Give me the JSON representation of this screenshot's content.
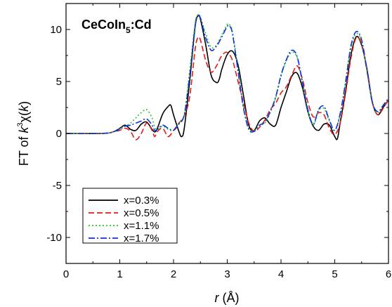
{
  "chart_data": {
    "type": "line",
    "annotation": {
      "main": "CeCoIn",
      "sub": "5",
      "suffix": ":Cd"
    },
    "xlabel": {
      "italic": "r",
      "rest": " (Å)"
    },
    "ylabel": {
      "prefix": "FT of ",
      "k": "k",
      "exp": "3",
      "chi": "χ(",
      "k2": "k",
      "close": ")"
    },
    "xlim": [
      0,
      6
    ],
    "ylim": [
      -12.5,
      12.5
    ],
    "x_ticks": [
      "0",
      "1",
      "2",
      "3",
      "4",
      "5",
      "6"
    ],
    "y_ticks": [
      "-10",
      "-5",
      "0",
      "5",
      "10"
    ],
    "grid": false,
    "legend_position": "lower-left",
    "series": [
      {
        "name": "x=0.3%",
        "color": "#000000",
        "dash": "solid",
        "points": [
          [
            0,
            0
          ],
          [
            0.3,
            0
          ],
          [
            0.6,
            0
          ],
          [
            0.8,
            0.05
          ],
          [
            0.9,
            0.2
          ],
          [
            1.0,
            0.5
          ],
          [
            1.1,
            0.8
          ],
          [
            1.2,
            0.4
          ],
          [
            1.3,
            0.3
          ],
          [
            1.4,
            0.9
          ],
          [
            1.5,
            1.1
          ],
          [
            1.6,
            0.4
          ],
          [
            1.65,
            0.15
          ],
          [
            1.7,
            0.5
          ],
          [
            1.8,
            1.9
          ],
          [
            1.9,
            2.6
          ],
          [
            1.95,
            2.7
          ],
          [
            2.0,
            1.8
          ],
          [
            2.1,
            0.2
          ],
          [
            2.15,
            -0.3
          ],
          [
            2.2,
            0.5
          ],
          [
            2.3,
            5.0
          ],
          [
            2.4,
            10.2
          ],
          [
            2.45,
            11.3
          ],
          [
            2.5,
            11.0
          ],
          [
            2.6,
            8.5
          ],
          [
            2.7,
            5.6
          ],
          [
            2.8,
            4.9
          ],
          [
            2.85,
            5.2
          ],
          [
            2.9,
            6.2
          ],
          [
            3.0,
            7.6
          ],
          [
            3.1,
            7.9
          ],
          [
            3.2,
            6.6
          ],
          [
            3.3,
            3.7
          ],
          [
            3.4,
            0.8
          ],
          [
            3.5,
            0.3
          ],
          [
            3.6,
            1.2
          ],
          [
            3.7,
            1.5
          ],
          [
            3.8,
            0.9
          ],
          [
            3.9,
            0.8
          ],
          [
            4.0,
            2.5
          ],
          [
            4.1,
            4.0
          ],
          [
            4.2,
            5.5
          ],
          [
            4.3,
            5.8
          ],
          [
            4.4,
            4.4
          ],
          [
            4.5,
            2.1
          ],
          [
            4.6,
            0.7
          ],
          [
            4.7,
            0.3
          ],
          [
            4.8,
            0.9
          ],
          [
            4.9,
            0.8
          ],
          [
            5.0,
            -0.3
          ],
          [
            5.05,
            -0.5
          ],
          [
            5.1,
            1.0
          ],
          [
            5.2,
            4.0
          ],
          [
            5.3,
            7.5
          ],
          [
            5.4,
            9.3
          ],
          [
            5.5,
            8.5
          ],
          [
            5.6,
            6.2
          ],
          [
            5.7,
            3.0
          ],
          [
            5.8,
            1.8
          ],
          [
            5.9,
            2.5
          ],
          [
            6.0,
            3.2
          ]
        ]
      },
      {
        "name": "x=0.5%",
        "color": "#e31a1c",
        "dash": "dashed",
        "points": [
          [
            0,
            0
          ],
          [
            0.3,
            0
          ],
          [
            0.6,
            0
          ],
          [
            0.8,
            0.05
          ],
          [
            0.9,
            0.2
          ],
          [
            1.0,
            0.3
          ],
          [
            1.1,
            0.5
          ],
          [
            1.2,
            0.2
          ],
          [
            1.3,
            -0.6
          ],
          [
            1.4,
            0
          ],
          [
            1.5,
            1.0
          ],
          [
            1.6,
            0.3
          ],
          [
            1.65,
            -0.3
          ],
          [
            1.7,
            0.2
          ],
          [
            1.8,
            0.5
          ],
          [
            1.9,
            -0.3
          ],
          [
            2.0,
            0.3
          ],
          [
            2.1,
            1.0
          ],
          [
            2.2,
            1.7
          ],
          [
            2.3,
            3.5
          ],
          [
            2.4,
            8.0
          ],
          [
            2.45,
            9.2
          ],
          [
            2.5,
            9.0
          ],
          [
            2.6,
            7.0
          ],
          [
            2.7,
            5.9
          ],
          [
            2.8,
            6.5
          ],
          [
            2.9,
            7.5
          ],
          [
            3.0,
            7.8
          ],
          [
            3.1,
            7.0
          ],
          [
            3.2,
            5.0
          ],
          [
            3.3,
            3.0
          ],
          [
            3.4,
            1.0
          ],
          [
            3.5,
            0.2
          ],
          [
            3.6,
            0.6
          ],
          [
            3.7,
            1.3
          ],
          [
            3.8,
            2.3
          ],
          [
            3.9,
            2.9
          ],
          [
            4.0,
            3.9
          ],
          [
            4.1,
            4.5
          ],
          [
            4.2,
            5.6
          ],
          [
            4.3,
            6.5
          ],
          [
            4.4,
            5.2
          ],
          [
            4.5,
            3.0
          ],
          [
            4.6,
            1.6
          ],
          [
            4.7,
            2.0
          ],
          [
            4.8,
            1.8
          ],
          [
            4.9,
            0.5
          ],
          [
            5.0,
            -0.1
          ],
          [
            5.1,
            1.0
          ],
          [
            5.2,
            3.8
          ],
          [
            5.3,
            7.2
          ],
          [
            5.4,
            9.2
          ],
          [
            5.5,
            8.6
          ],
          [
            5.6,
            6.0
          ],
          [
            5.7,
            3.0
          ],
          [
            5.8,
            1.8
          ],
          [
            5.9,
            2.4
          ],
          [
            6.0,
            3.3
          ]
        ]
      },
      {
        "name": "x=1.1%",
        "color": "#22cc22",
        "dash": "dotted",
        "points": [
          [
            0,
            0
          ],
          [
            0.3,
            0
          ],
          [
            0.6,
            0
          ],
          [
            0.8,
            0.05
          ],
          [
            0.9,
            0.2
          ],
          [
            1.0,
            0.5
          ],
          [
            1.1,
            0.7
          ],
          [
            1.2,
            1.0
          ],
          [
            1.3,
            1.5
          ],
          [
            1.4,
            2.0
          ],
          [
            1.5,
            2.3
          ],
          [
            1.6,
            1.5
          ],
          [
            1.65,
            0.6
          ],
          [
            1.7,
            0.4
          ],
          [
            1.8,
            0.7
          ],
          [
            1.9,
            0.4
          ],
          [
            2.0,
            0.3
          ],
          [
            2.1,
            1.0
          ],
          [
            2.2,
            1.9
          ],
          [
            2.3,
            6.0
          ],
          [
            2.4,
            10.5
          ],
          [
            2.45,
            11.4
          ],
          [
            2.5,
            11.2
          ],
          [
            2.6,
            9.6
          ],
          [
            2.7,
            8.3
          ],
          [
            2.8,
            8.5
          ],
          [
            2.9,
            9.5
          ],
          [
            3.0,
            10.5
          ],
          [
            3.05,
            10.4
          ],
          [
            3.1,
            9.7
          ],
          [
            3.2,
            6.2
          ],
          [
            3.3,
            2.6
          ],
          [
            3.4,
            0.5
          ],
          [
            3.5,
            0.3
          ],
          [
            3.6,
            0.8
          ],
          [
            3.7,
            1.0
          ],
          [
            3.8,
            2.0
          ],
          [
            3.9,
            3.4
          ],
          [
            4.0,
            5.5
          ],
          [
            4.1,
            7.0
          ],
          [
            4.2,
            7.8
          ],
          [
            4.3,
            7.3
          ],
          [
            4.4,
            4.8
          ],
          [
            4.5,
            2.2
          ],
          [
            4.6,
            0.8
          ],
          [
            4.7,
            2.2
          ],
          [
            4.8,
            2.4
          ],
          [
            4.9,
            1.2
          ],
          [
            5.0,
            0.3
          ],
          [
            5.1,
            1.8
          ],
          [
            5.2,
            4.8
          ],
          [
            5.3,
            8.2
          ],
          [
            5.4,
            9.6
          ],
          [
            5.5,
            8.8
          ],
          [
            5.6,
            6.0
          ],
          [
            5.7,
            2.9
          ],
          [
            5.8,
            2.0
          ],
          [
            5.9,
            2.7
          ],
          [
            6.0,
            3.3
          ]
        ]
      },
      {
        "name": "x=1.7%",
        "color": "#1030e0",
        "dash": "dashdot",
        "points": [
          [
            0,
            0
          ],
          [
            0.3,
            0
          ],
          [
            0.6,
            0
          ],
          [
            0.8,
            0.05
          ],
          [
            0.9,
            0.2
          ],
          [
            1.0,
            0.4
          ],
          [
            1.1,
            0.7
          ],
          [
            1.2,
            0.8
          ],
          [
            1.3,
            1.0
          ],
          [
            1.4,
            1.2
          ],
          [
            1.5,
            1.4
          ],
          [
            1.6,
            0.8
          ],
          [
            1.65,
            0.3
          ],
          [
            1.7,
            0.4
          ],
          [
            1.8,
            0.8
          ],
          [
            1.9,
            0.5
          ],
          [
            2.0,
            0.3
          ],
          [
            2.1,
            0.9
          ],
          [
            2.2,
            1.8
          ],
          [
            2.3,
            5.5
          ],
          [
            2.4,
            10.2
          ],
          [
            2.45,
            11.2
          ],
          [
            2.5,
            11.1
          ],
          [
            2.6,
            9.2
          ],
          [
            2.7,
            8.0
          ],
          [
            2.8,
            8.4
          ],
          [
            2.9,
            9.3
          ],
          [
            3.0,
            10.3
          ],
          [
            3.05,
            10.3
          ],
          [
            3.1,
            9.5
          ],
          [
            3.2,
            6.0
          ],
          [
            3.3,
            2.5
          ],
          [
            3.4,
            0.4
          ],
          [
            3.5,
            0.2
          ],
          [
            3.6,
            0.8
          ],
          [
            3.7,
            1.1
          ],
          [
            3.8,
            2.1
          ],
          [
            3.9,
            3.5
          ],
          [
            4.0,
            5.6
          ],
          [
            4.1,
            7.1
          ],
          [
            4.2,
            8.0
          ],
          [
            4.3,
            7.4
          ],
          [
            4.4,
            4.9
          ],
          [
            4.5,
            2.3
          ],
          [
            4.6,
            0.9
          ],
          [
            4.7,
            2.3
          ],
          [
            4.8,
            2.6
          ],
          [
            4.9,
            1.3
          ],
          [
            5.0,
            0.3
          ],
          [
            5.1,
            1.9
          ],
          [
            5.2,
            4.9
          ],
          [
            5.3,
            8.4
          ],
          [
            5.4,
            9.8
          ],
          [
            5.5,
            9.0
          ],
          [
            5.6,
            6.1
          ],
          [
            5.7,
            3.0
          ],
          [
            5.8,
            2.1
          ],
          [
            5.9,
            2.7
          ],
          [
            6.0,
            3.4
          ]
        ]
      }
    ]
  }
}
